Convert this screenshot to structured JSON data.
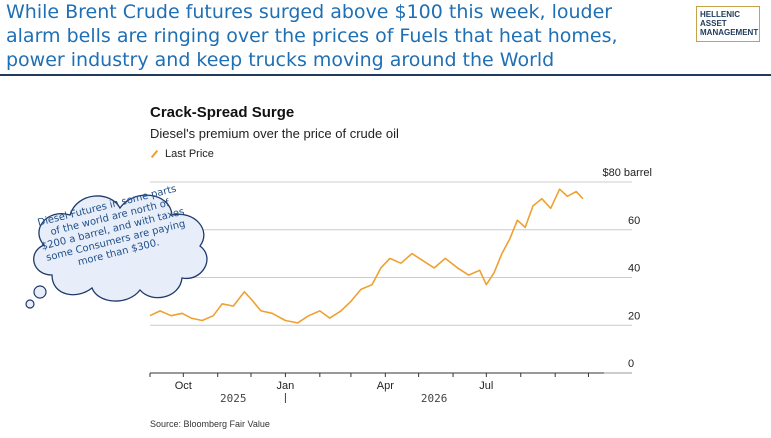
{
  "headline": "While Brent Crude futures surged above $100 this week, louder alarm bells are ringing over the prices of Fuels that heat homes, power industry and keep trucks moving around the World",
  "logo": {
    "lines": [
      "HELLENIC",
      "ASSET",
      "MANAGEMENT"
    ]
  },
  "callout": {
    "text": "Diesel Futures in some parts of the world are north of $200 a barrel, and with taxes some Consumers are paying more than $300."
  },
  "source": "Source: Bloomberg Fair Value",
  "colors": {
    "headline": "#1f6fb5",
    "line": "#f0a030",
    "grid": "#cccccc"
  },
  "chart_data": {
    "type": "line",
    "title": "Crack-Spread Surge",
    "subtitle": "Diesel's premium over the price of crude oil",
    "legend": [
      "Last Price"
    ],
    "ylim": [
      0,
      80
    ],
    "yticks": [
      0,
      20,
      40,
      60,
      80
    ],
    "ytick_labels": [
      "0",
      "20",
      "40",
      "60",
      "$80 barrel"
    ],
    "xlim": [
      "2025-09-01",
      "2026-10-15"
    ],
    "xticks": [
      {
        "date": "2025-10-01",
        "label": "Oct"
      },
      {
        "date": "2026-01-01",
        "label": "Jan"
      },
      {
        "date": "2026-04-01",
        "label": "Apr"
      },
      {
        "date": "2026-07-01",
        "label": "Jul"
      }
    ],
    "year_labels": [
      {
        "date": "2025-11-15",
        "label": "2025"
      },
      {
        "date": "2026-05-15",
        "label": "2026"
      }
    ],
    "year_divider": "2026-01-01",
    "series": [
      {
        "name": "Last Price",
        "points": [
          [
            "2025-09-01",
            24
          ],
          [
            "2025-09-10",
            26
          ],
          [
            "2025-09-20",
            24
          ],
          [
            "2025-09-30",
            25
          ],
          [
            "2025-10-08",
            23
          ],
          [
            "2025-10-18",
            22
          ],
          [
            "2025-10-28",
            24
          ],
          [
            "2025-11-05",
            29
          ],
          [
            "2025-11-15",
            28
          ],
          [
            "2025-11-25",
            34
          ],
          [
            "2025-12-01",
            31
          ],
          [
            "2025-12-10",
            26
          ],
          [
            "2025-12-20",
            25
          ],
          [
            "2026-01-01",
            22
          ],
          [
            "2026-01-12",
            21
          ],
          [
            "2026-01-22",
            24
          ],
          [
            "2026-02-01",
            26
          ],
          [
            "2026-02-10",
            23
          ],
          [
            "2026-02-20",
            26
          ],
          [
            "2026-03-01",
            30
          ],
          [
            "2026-03-10",
            35
          ],
          [
            "2026-03-20",
            37
          ],
          [
            "2026-03-28",
            44
          ],
          [
            "2026-04-05",
            48
          ],
          [
            "2026-04-15",
            46
          ],
          [
            "2026-04-25",
            50
          ],
          [
            "2026-05-05",
            47
          ],
          [
            "2026-05-15",
            44
          ],
          [
            "2026-05-25",
            48
          ],
          [
            "2026-06-05",
            44
          ],
          [
            "2026-06-15",
            41
          ],
          [
            "2026-06-25",
            43
          ],
          [
            "2026-07-01",
            37
          ],
          [
            "2026-07-08",
            42
          ],
          [
            "2026-07-15",
            50
          ],
          [
            "2026-07-22",
            56
          ],
          [
            "2026-07-29",
            64
          ],
          [
            "2026-08-05",
            61
          ],
          [
            "2026-08-12",
            70
          ],
          [
            "2026-08-20",
            73
          ],
          [
            "2026-08-28",
            69
          ],
          [
            "2026-09-05",
            77
          ],
          [
            "2026-09-12",
            74
          ],
          [
            "2026-09-20",
            76
          ],
          [
            "2026-09-26",
            73
          ]
        ]
      }
    ]
  }
}
